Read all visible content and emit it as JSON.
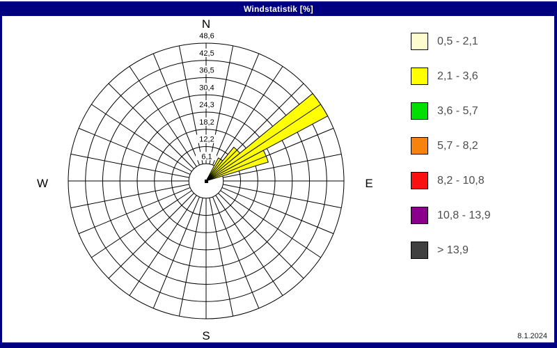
{
  "window": {
    "title": "Windstatistik [%]",
    "date": "8.1.2024",
    "chrome_color": "#000080"
  },
  "compass": {
    "north": "N",
    "east": "E",
    "south": "S",
    "west": "W"
  },
  "chart_data": {
    "type": "windrose",
    "title": "Windstatistik [%]",
    "unit": "%",
    "sectors": 32,
    "sector_width_deg": 11.25,
    "rings": [
      6.1,
      12.2,
      18.2,
      24.3,
      30.4,
      36.5,
      42.5,
      48.6
    ],
    "ring_labels": [
      "6,1",
      "12,2",
      "18,2",
      "24,3",
      "30,4",
      "36,5",
      "42,5",
      "48,6"
    ],
    "max": 48.6,
    "grid_color": "#000000",
    "wedges": [
      {
        "direction_deg": 33.75,
        "value": 9.2,
        "color": "#FFFF00",
        "speed_class": "2,1 - 3,6"
      },
      {
        "direction_deg": 45.0,
        "value": 15.4,
        "color": "#FFFF00",
        "speed_class": "2,1 - 3,6"
      },
      {
        "direction_deg": 56.25,
        "value": 48.6,
        "color": "#FFFF00",
        "speed_class": "2,1 - 3,6"
      },
      {
        "direction_deg": 67.5,
        "value": 22.9,
        "color": "#FFFF00",
        "speed_class": "2,1 - 3,6"
      }
    ]
  },
  "legend": {
    "items": [
      {
        "label": "0,5 - 2,1",
        "color": "#FCFCCE"
      },
      {
        "label": "2,1 - 3,6",
        "color": "#FFFF00"
      },
      {
        "label": "3,6 - 5,7",
        "color": "#00E000"
      },
      {
        "label": "5,7 - 8,2",
        "color": "#F7820D"
      },
      {
        "label": "8,2 - 10,8",
        "color": "#FB1010"
      },
      {
        "label": "10,8 - 13,9",
        "color": "#8B008B"
      },
      {
        "label": "> 13,9",
        "color": "#404040"
      }
    ]
  }
}
